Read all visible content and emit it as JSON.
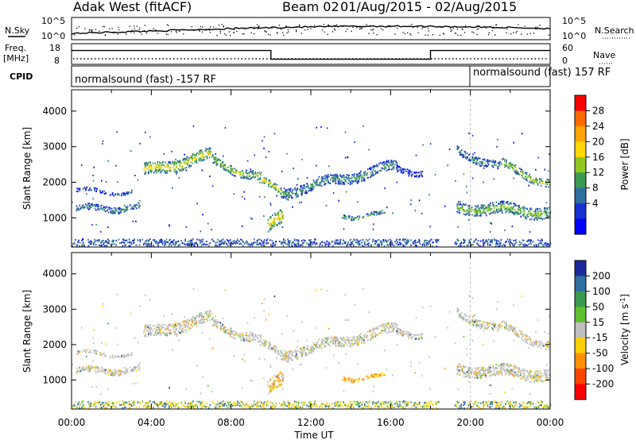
{
  "header": {
    "radar": "Adak West (fitACF)",
    "beam": "Beam 02",
    "date_range": "01/Aug/2015 - 02/Aug/2015"
  },
  "panels": {
    "nsky": {
      "left_label": "N.Sky",
      "right_label": "N.Search",
      "left_ticks": [
        "10^5",
        "10^0"
      ],
      "right_ticks": [
        "10^5",
        "10^0"
      ]
    },
    "freq": {
      "left_label": "Freq.",
      "left_unit": "[MHz]",
      "right_label": "Nave",
      "left_ticks": [
        "18",
        "8"
      ],
      "right_ticks": [
        "60",
        "0"
      ]
    },
    "cpid": {
      "label": "CPID",
      "seg1": "normalsound (fast) -157 RF",
      "seg2": "normalsound (fast) 157 RF"
    }
  },
  "power_colorbar": {
    "label": "Power [dB]",
    "ticks": [
      "28",
      "24",
      "20",
      "16",
      "12",
      "8",
      "4"
    ],
    "colors": [
      "#ff0000",
      "#ff6a00",
      "#ffa500",
      "#ffd700",
      "#90c820",
      "#3a9a50",
      "#2f6fa0",
      "#1830d0",
      "#0000ff"
    ]
  },
  "velocity_colorbar": {
    "label": "Velocity",
    "unit": "[m s",
    "unit_sup": "-1",
    "unit_end": "]",
    "ticks": [
      "200",
      "100",
      "50",
      "15",
      "-15",
      "-50",
      "-100",
      "-200"
    ],
    "colors": [
      "#1a2a9a",
      "#2f6fa0",
      "#3a9a50",
      "#60c030",
      "#bfbfbf",
      "#ffd000",
      "#ff9000",
      "#ff4500",
      "#ff0000"
    ]
  },
  "chart_data": {
    "type": "heatmap",
    "title": "Adak West (fitACF) Beam 02 01/Aug/2015 - 02/Aug/2015",
    "xlabel": "Time UT",
    "ylabel": "Slant Range [km]",
    "xlim": [
      0,
      24
    ],
    "ylim": [
      180,
      4600
    ],
    "x_ticks": [
      "00:00",
      "04:00",
      "08:00",
      "12:00",
      "16:00",
      "20:00",
      "00:00"
    ],
    "y_ticks": [
      "1000",
      "2000",
      "3000",
      "4000"
    ],
    "freq_mhz": [
      {
        "start": 0,
        "end": 10,
        "value": 15
      },
      {
        "start": 10,
        "end": 18,
        "value": 10
      },
      {
        "start": 18,
        "end": 24,
        "value": 15
      }
    ],
    "cpid_change_hour": 20,
    "scatter_bands": [
      {
        "t0": 0.2,
        "t1": 3.0,
        "r0": 1740,
        "r1": 1740,
        "w": 90,
        "p": 9
      },
      {
        "t0": 0.2,
        "t1": 3.4,
        "r0": 1230,
        "r1": 1300,
        "w": 170,
        "p": 12
      },
      {
        "t0": 3.6,
        "t1": 7.0,
        "r0": 2300,
        "r1": 2750,
        "w": 320,
        "p": 20
      },
      {
        "t0": 7.0,
        "t1": 9.5,
        "r0": 2600,
        "r1": 2100,
        "w": 250,
        "p": 17
      },
      {
        "t0": 9.5,
        "t1": 11.0,
        "r0": 2000,
        "r1": 1600,
        "w": 200,
        "p": 21
      },
      {
        "t0": 10.5,
        "t1": 16.3,
        "r0": 1700,
        "r1": 2450,
        "w": 280,
        "p": 12
      },
      {
        "t0": 9.8,
        "t1": 10.6,
        "r0": 700,
        "r1": 1100,
        "w": 400,
        "p": 22
      },
      {
        "t0": 13.5,
        "t1": 15.8,
        "r0": 1050,
        "r1": 1100,
        "w": 110,
        "p": 14
      },
      {
        "t0": 16.3,
        "t1": 17.6,
        "r0": 2350,
        "r1": 2300,
        "w": 180,
        "p": 8
      },
      {
        "t0": 19.3,
        "t1": 24.0,
        "r0": 1300,
        "r1": 1150,
        "w": 320,
        "p": 16
      },
      {
        "t0": 19.3,
        "t1": 21.5,
        "r0": 2900,
        "r1": 2400,
        "w": 220,
        "p": 12
      },
      {
        "t0": 21.5,
        "t1": 24.0,
        "r0": 2500,
        "r1": 1950,
        "w": 220,
        "p": 18
      }
    ]
  }
}
